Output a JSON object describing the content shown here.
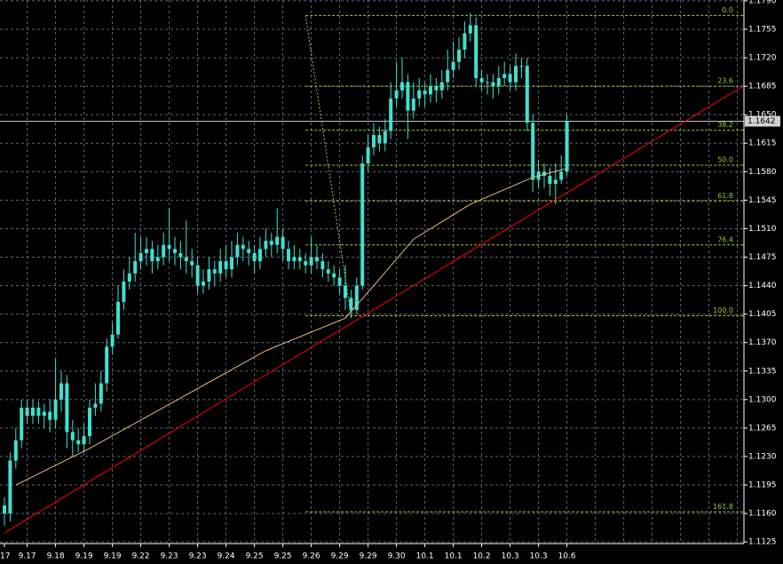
{
  "chart_data": {
    "type": "candlestick",
    "color": "#40e0d0",
    "grid": true,
    "grid_color": "#5a6470",
    "categories": [
      "17",
      null,
      null,
      null,
      "9.17",
      null,
      null,
      null,
      null,
      "9.18",
      null,
      null,
      null,
      null,
      "9.19",
      null,
      null,
      null,
      null,
      "9.19",
      null,
      null,
      null,
      null,
      "9.22",
      null,
      null,
      null,
      null,
      "9.23",
      null,
      null,
      null,
      null,
      "9.23",
      null,
      null,
      null,
      null,
      "9.24",
      null,
      null,
      null,
      null,
      "9.25",
      null,
      null,
      null,
      null,
      "9.25",
      null,
      null,
      null,
      null,
      "9.26",
      null,
      null,
      null,
      null,
      "9.29",
      null,
      null,
      null,
      null,
      "9.29",
      null,
      null,
      null,
      null,
      "9.30",
      null,
      null,
      null,
      null,
      "10.1",
      null,
      null,
      null,
      null,
      "10.1",
      null,
      null,
      null,
      null,
      "10.2",
      null,
      null,
      null,
      null,
      "10.3",
      null,
      null,
      null,
      null,
      "10.3",
      null,
      null,
      null,
      null,
      "10.6"
    ],
    "open": [
      1.117,
      1.116,
      1.1225,
      1.125,
      1.129,
      1.128,
      1.129,
      1.128,
      1.1285,
      1.1275,
      1.13,
      1.132,
      1.126,
      1.125,
      1.1245,
      1.1255,
      1.129,
      1.1295,
      1.132,
      1.1365,
      1.138,
      1.142,
      1.1445,
      1.1455,
      1.147,
      1.148,
      1.1485,
      1.147,
      1.1475,
      1.149,
      1.1485,
      1.148,
      1.1475,
      1.147,
      1.1465,
      1.144,
      1.1445,
      1.146,
      1.1455,
      1.147,
      1.146,
      1.1475,
      1.149,
      1.1485,
      1.148,
      1.147,
      1.1485,
      1.1495,
      1.149,
      1.15,
      1.1485,
      1.147,
      1.1475,
      1.147,
      1.1465,
      1.1475,
      1.147,
      1.146,
      1.1455,
      1.145,
      1.144,
      1.1425,
      1.141,
      1.144,
      1.159,
      1.161,
      1.1625,
      1.1615,
      1.163,
      1.167,
      1.168,
      1.169,
      1.1655,
      1.167,
      1.168,
      1.1675,
      1.1685,
      1.168,
      1.169,
      1.1705,
      1.1715,
      1.173,
      1.175,
      1.176,
      1.1695,
      1.169,
      1.169,
      1.1685,
      1.1695,
      1.17,
      1.169,
      1.171,
      1.171,
      1.164,
      1.157,
      1.158,
      1.1575,
      1.1565,
      1.157,
      1.158
    ],
    "high": [
      1.118,
      1.1235,
      1.1265,
      1.13,
      1.13,
      1.13,
      1.1298,
      1.1295,
      1.13,
      1.135,
      1.1335,
      1.133,
      1.1275,
      1.1265,
      1.127,
      1.13,
      1.132,
      1.1335,
      1.1375,
      1.1395,
      1.144,
      1.146,
      1.1475,
      1.1505,
      1.15,
      1.15,
      1.1495,
      1.149,
      1.1505,
      1.1535,
      1.15,
      1.1495,
      1.152,
      1.1485,
      1.1475,
      1.146,
      1.1475,
      1.147,
      1.1485,
      1.149,
      1.1495,
      1.1505,
      1.15,
      1.1495,
      1.149,
      1.15,
      1.151,
      1.1505,
      1.1535,
      1.151,
      1.1495,
      1.149,
      1.1485,
      1.148,
      1.15,
      1.149,
      1.148,
      1.147,
      1.1465,
      1.146,
      1.1465,
      1.1435,
      1.145,
      1.16,
      1.1625,
      1.164,
      1.1635,
      1.1645,
      1.169,
      1.1715,
      1.172,
      1.17,
      1.169,
      1.1695,
      1.169,
      1.17,
      1.1695,
      1.1705,
      1.173,
      1.174,
      1.1745,
      1.1765,
      1.1775,
      1.177,
      1.1705,
      1.17,
      1.17,
      1.171,
      1.1715,
      1.171,
      1.1725,
      1.172,
      1.172,
      1.165,
      1.1595,
      1.159,
      1.1585,
      1.159,
      1.16,
      1.165
    ],
    "low": [
      1.1145,
      1.115,
      1.1215,
      1.124,
      1.127,
      1.127,
      1.127,
      1.1265,
      1.126,
      1.1265,
      1.1285,
      1.124,
      1.123,
      1.1235,
      1.1235,
      1.1245,
      1.128,
      1.1285,
      1.131,
      1.1355,
      1.1375,
      1.141,
      1.1435,
      1.1445,
      1.146,
      1.1465,
      1.1455,
      1.146,
      1.1465,
      1.147,
      1.1465,
      1.146,
      1.1455,
      1.145,
      1.143,
      1.143,
      1.1435,
      1.144,
      1.1445,
      1.145,
      1.145,
      1.1465,
      1.147,
      1.1465,
      1.1455,
      1.146,
      1.1475,
      1.1475,
      1.148,
      1.147,
      1.146,
      1.146,
      1.146,
      1.1455,
      1.1455,
      1.146,
      1.145,
      1.1445,
      1.144,
      1.143,
      1.141,
      1.14,
      1.1405,
      1.1435,
      1.158,
      1.16,
      1.1605,
      1.1605,
      1.162,
      1.166,
      1.167,
      1.162,
      1.1645,
      1.166,
      1.166,
      1.1665,
      1.1665,
      1.167,
      1.168,
      1.1695,
      1.1705,
      1.172,
      1.174,
      1.1685,
      1.168,
      1.1675,
      1.167,
      1.1675,
      1.1685,
      1.168,
      1.168,
      1.1695,
      1.163,
      1.1555,
      1.156,
      1.156,
      1.155,
      1.154,
      1.1565,
      1.1575
    ],
    "close": [
      1.116,
      1.1225,
      1.125,
      1.129,
      1.128,
      1.129,
      1.128,
      1.1285,
      1.1275,
      1.13,
      1.132,
      1.126,
      1.125,
      1.1245,
      1.1255,
      1.129,
      1.1295,
      1.132,
      1.1365,
      1.138,
      1.142,
      1.1445,
      1.1455,
      1.147,
      1.148,
      1.1485,
      1.147,
      1.1475,
      1.149,
      1.1485,
      1.148,
      1.1475,
      1.147,
      1.1465,
      1.144,
      1.1445,
      1.146,
      1.1455,
      1.147,
      1.146,
      1.1475,
      1.149,
      1.1485,
      1.148,
      1.147,
      1.1485,
      1.1495,
      1.149,
      1.15,
      1.1485,
      1.147,
      1.1475,
      1.147,
      1.1465,
      1.1475,
      1.147,
      1.146,
      1.1455,
      1.145,
      1.144,
      1.1425,
      1.141,
      1.144,
      1.159,
      1.161,
      1.1625,
      1.1615,
      1.163,
      1.167,
      1.168,
      1.169,
      1.1655,
      1.167,
      1.168,
      1.1675,
      1.1685,
      1.168,
      1.169,
      1.1705,
      1.1715,
      1.173,
      1.175,
      1.176,
      1.1695,
      1.169,
      1.169,
      1.1685,
      1.1695,
      1.17,
      1.169,
      1.171,
      1.171,
      1.164,
      1.157,
      1.158,
      1.1575,
      1.1565,
      1.157,
      1.158,
      1.1642
    ],
    "moving_average": {
      "color": "#e8b878",
      "x": [
        2,
        15,
        30,
        46,
        60,
        65,
        72,
        82,
        93,
        99
      ],
      "values": [
        1.1195,
        1.124,
        1.1298,
        1.136,
        1.14,
        1.144,
        1.1497,
        1.154,
        1.1573,
        1.1584
      ]
    },
    "trendline": {
      "color": "#ff0000",
      "x": [
        0,
        130
      ],
      "values": [
        1.1136,
        1.1685
      ]
    },
    "fibonacci": {
      "color": "#9acd32",
      "anchor_x": [
        53,
        61
      ],
      "levels": [
        {
          "label": "0.0",
          "price": 1.1772
        },
        {
          "label": "23.6",
          "price": 1.1685
        },
        {
          "label": "38.2",
          "price": 1.1631
        },
        {
          "label": "50.0",
          "price": 1.1588
        },
        {
          "label": "61.8",
          "price": 1.1544
        },
        {
          "label": "76.4",
          "price": 1.149
        },
        {
          "label": "100.0",
          "price": 1.1403
        },
        {
          "label": "161.8",
          "price": 1.1162
        }
      ]
    },
    "last_price": 1.1642,
    "ylim": [
      1.1123,
      1.1791
    ],
    "yticks": [
      1.1125,
      {
        "value": 1.116,
        "label": "1.1160"
      },
      1.1195,
      {
        "value": 1.123,
        "label": "1.1230"
      },
      1.1265,
      {
        "value": 1.13,
        "label": "1.1300"
      },
      1.1335,
      {
        "value": 1.137,
        "label": "1.1370"
      },
      1.1405,
      {
        "value": 1.144,
        "label": "1.1440"
      },
      1.1475,
      {
        "value": 1.151,
        "label": "1.1510"
      },
      1.1545,
      {
        "value": 1.158,
        "label": "1.1580"
      },
      1.1615,
      {
        "value": 1.165,
        "label": "1.1650"
      },
      1.1685,
      {
        "value": 1.172,
        "label": "1.1720"
      },
      1.1755,
      {
        "value": 1.179,
        "label": "1.1790"
      }
    ]
  }
}
